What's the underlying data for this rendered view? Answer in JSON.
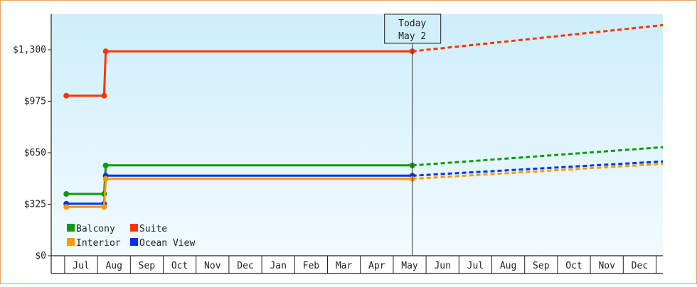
{
  "chart_data": {
    "type": "line",
    "title": "",
    "xlabel": "",
    "ylabel": "",
    "ylim": [
      0,
      1300
    ],
    "y_ticks": [
      {
        "value": 0,
        "label": "$0"
      },
      {
        "value": 325,
        "label": "$325"
      },
      {
        "value": 650,
        "label": "$650"
      },
      {
        "value": 975,
        "label": "$975"
      },
      {
        "value": 1300,
        "label": "$1,300"
      }
    ],
    "x_ticks": [
      "Jul",
      "Aug",
      "Sep",
      "Oct",
      "Nov",
      "Dec",
      "Jan",
      "Feb",
      "Mar",
      "Apr",
      "May",
      "Jun",
      "Jul",
      "Aug",
      "Sep",
      "Oct",
      "Nov",
      "Dec"
    ],
    "today_marker": {
      "line1": "Today",
      "line2": "May 2",
      "month_index": 10.08
    },
    "grid": false,
    "legend_position": "bottom-left",
    "series": [
      {
        "name": "Suite",
        "color": "#ff3300",
        "points": [
          [
            -0.45,
            1010
          ],
          [
            0.7,
            1010
          ],
          [
            0.75,
            1290
          ],
          [
            10.08,
            1290
          ]
        ],
        "projection": [
          [
            10.08,
            1290
          ],
          [
            18.32,
            1455
          ]
        ]
      },
      {
        "name": "Balcony",
        "color": "#119911",
        "points": [
          [
            -0.45,
            390
          ],
          [
            0.7,
            390
          ],
          [
            0.75,
            570
          ],
          [
            10.08,
            570
          ]
        ],
        "projection": [
          [
            10.08,
            570
          ],
          [
            18.32,
            685
          ]
        ]
      },
      {
        "name": "Ocean View",
        "color": "#0033ee",
        "points": [
          [
            -0.45,
            328
          ],
          [
            0.7,
            328
          ],
          [
            0.75,
            505
          ],
          [
            10.08,
            505
          ]
        ],
        "projection": [
          [
            10.08,
            505
          ],
          [
            18.32,
            595
          ]
        ]
      },
      {
        "name": "Interior",
        "color": "#ff9900",
        "points": [
          [
            -0.45,
            308
          ],
          [
            0.7,
            308
          ],
          [
            0.75,
            485
          ],
          [
            10.08,
            485
          ]
        ],
        "projection": [
          [
            10.08,
            485
          ],
          [
            18.32,
            580
          ]
        ]
      }
    ],
    "legend": [
      {
        "name": "Balcony",
        "color": "#119911"
      },
      {
        "name": "Suite",
        "color": "#ff3300"
      },
      {
        "name": "Interior",
        "color": "#ff9900"
      },
      {
        "name": "Ocean View",
        "color": "#0033ee"
      }
    ]
  }
}
